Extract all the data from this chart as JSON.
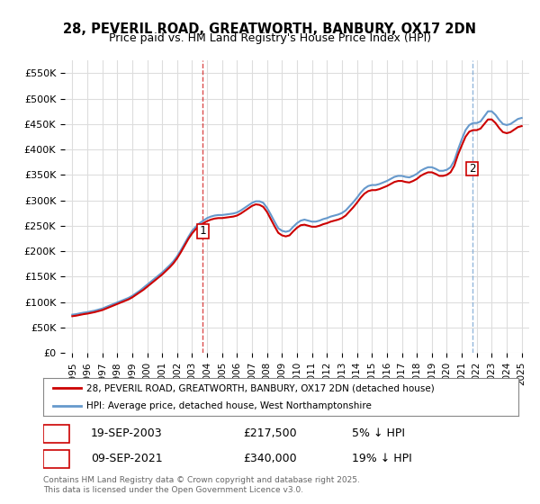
{
  "title_line1": "28, PEVERIL ROAD, GREATWORTH, BANBURY, OX17 2DN",
  "title_line2": "Price paid vs. HM Land Registry's House Price Index (HPI)",
  "legend_line1": "28, PEVERIL ROAD, GREATWORTH, BANBURY, OX17 2DN (detached house)",
  "legend_line2": "HPI: Average price, detached house, West Northamptonshire",
  "footer": "Contains HM Land Registry data © Crown copyright and database right 2025.\nThis data is licensed under the Open Government Licence v3.0.",
  "transaction1_label": "1",
  "transaction1_date": "19-SEP-2003",
  "transaction1_price": "£217,500",
  "transaction1_hpi": "5% ↓ HPI",
  "transaction2_label": "2",
  "transaction2_date": "09-SEP-2021",
  "transaction2_price": "£340,000",
  "transaction2_hpi": "19% ↓ HPI",
  "sale_color": "#cc0000",
  "hpi_color": "#6699cc",
  "background_color": "#ffffff",
  "grid_color": "#dddddd",
  "sale1_x": 2003.72,
  "sale1_y": 217500,
  "sale2_x": 2021.69,
  "sale2_y": 340000,
  "ylim_min": 0,
  "ylim_max": 575000,
  "xlim_min": 1994.5,
  "xlim_max": 2025.5,
  "hpi_years": [
    1995,
    1995.25,
    1995.5,
    1995.75,
    1996,
    1996.25,
    1996.5,
    1996.75,
    1997,
    1997.25,
    1997.5,
    1997.75,
    1998,
    1998.25,
    1998.5,
    1998.75,
    1999,
    1999.25,
    1999.5,
    1999.75,
    2000,
    2000.25,
    2000.5,
    2000.75,
    2001,
    2001.25,
    2001.5,
    2001.75,
    2002,
    2002.25,
    2002.5,
    2002.75,
    2003,
    2003.25,
    2003.5,
    2003.75,
    2004,
    2004.25,
    2004.5,
    2004.75,
    2005,
    2005.25,
    2005.5,
    2005.75,
    2006,
    2006.25,
    2006.5,
    2006.75,
    2007,
    2007.25,
    2007.5,
    2007.75,
    2008,
    2008.25,
    2008.5,
    2008.75,
    2009,
    2009.25,
    2009.5,
    2009.75,
    2010,
    2010.25,
    2010.5,
    2010.75,
    2011,
    2011.25,
    2011.5,
    2011.75,
    2012,
    2012.25,
    2012.5,
    2012.75,
    2013,
    2013.25,
    2013.5,
    2013.75,
    2014,
    2014.25,
    2014.5,
    2014.75,
    2015,
    2015.25,
    2015.5,
    2015.75,
    2016,
    2016.25,
    2016.5,
    2016.75,
    2017,
    2017.25,
    2017.5,
    2017.75,
    2018,
    2018.25,
    2018.5,
    2018.75,
    2019,
    2019.25,
    2019.5,
    2019.75,
    2020,
    2020.25,
    2020.5,
    2020.75,
    2021,
    2021.25,
    2021.5,
    2021.75,
    2022,
    2022.25,
    2022.5,
    2022.75,
    2023,
    2023.25,
    2023.5,
    2023.75,
    2024,
    2024.25,
    2024.5,
    2024.75,
    2025
  ],
  "hpi_values": [
    75000,
    76000,
    77500,
    79000,
    80000,
    81500,
    83000,
    85000,
    87000,
    90000,
    93000,
    96000,
    99000,
    102000,
    105000,
    108000,
    112000,
    117000,
    122000,
    128000,
    134000,
    140000,
    146000,
    152000,
    158000,
    165000,
    172000,
    180000,
    190000,
    202000,
    215000,
    228000,
    240000,
    248000,
    255000,
    260000,
    265000,
    268000,
    270000,
    271000,
    271000,
    272000,
    273000,
    274000,
    276000,
    280000,
    285000,
    290000,
    295000,
    298000,
    298000,
    295000,
    285000,
    272000,
    258000,
    245000,
    240000,
    238000,
    240000,
    248000,
    255000,
    260000,
    262000,
    260000,
    258000,
    258000,
    260000,
    263000,
    265000,
    268000,
    270000,
    272000,
    275000,
    280000,
    288000,
    296000,
    305000,
    315000,
    323000,
    328000,
    330000,
    330000,
    332000,
    335000,
    338000,
    342000,
    346000,
    348000,
    348000,
    346000,
    345000,
    348000,
    352000,
    358000,
    362000,
    365000,
    365000,
    362000,
    358000,
    358000,
    360000,
    365000,
    378000,
    400000,
    420000,
    438000,
    448000,
    452000,
    452000,
    455000,
    465000,
    475000,
    475000,
    468000,
    458000,
    450000,
    448000,
    450000,
    455000,
    460000,
    462000
  ],
  "sale_years": [
    1995,
    1995.25,
    1995.5,
    1995.75,
    1996,
    1996.25,
    1996.5,
    1996.75,
    1997,
    1997.25,
    1997.5,
    1997.75,
    1998,
    1998.25,
    1998.5,
    1998.75,
    1999,
    1999.25,
    1999.5,
    1999.75,
    2000,
    2000.25,
    2000.5,
    2000.75,
    2001,
    2001.25,
    2001.5,
    2001.75,
    2002,
    2002.25,
    2002.5,
    2002.75,
    2003,
    2003.25,
    2003.5,
    2003.75,
    2004,
    2004.25,
    2004.5,
    2004.75,
    2005,
    2005.25,
    2005.5,
    2005.75,
    2006,
    2006.25,
    2006.5,
    2006.75,
    2007,
    2007.25,
    2007.5,
    2007.75,
    2008,
    2008.25,
    2008.5,
    2008.75,
    2009,
    2009.25,
    2009.5,
    2009.75,
    2010,
    2010.25,
    2010.5,
    2010.75,
    2011,
    2011.25,
    2011.5,
    2011.75,
    2012,
    2012.25,
    2012.5,
    2012.75,
    2013,
    2013.25,
    2013.5,
    2013.75,
    2014,
    2014.25,
    2014.5,
    2014.75,
    2015,
    2015.25,
    2015.5,
    2015.75,
    2016,
    2016.25,
    2016.5,
    2016.75,
    2017,
    2017.25,
    2017.5,
    2017.75,
    2018,
    2018.25,
    2018.5,
    2018.75,
    2019,
    2019.25,
    2019.5,
    2019.75,
    2020,
    2020.25,
    2020.5,
    2020.75,
    2021,
    2021.25,
    2021.5,
    2021.75,
    2022,
    2022.25,
    2022.5,
    2022.75,
    2023,
    2023.25,
    2023.5,
    2023.75,
    2024,
    2024.25,
    2024.5,
    2024.75,
    2025
  ],
  "sale_values": [
    72000,
    73000,
    74500,
    76000,
    77000,
    78500,
    80000,
    82000,
    84000,
    87000,
    90000,
    93000,
    96000,
    99000,
    102000,
    105000,
    109000,
    114000,
    119000,
    124000,
    130000,
    136000,
    142000,
    148000,
    154000,
    161000,
    168000,
    176000,
    186000,
    198000,
    211000,
    224000,
    235000,
    243500,
    250000,
    255000,
    259000,
    262000,
    264000,
    265000,
    265000,
    266000,
    267000,
    268000,
    270000,
    274000,
    279000,
    284000,
    289000,
    292000,
    291000,
    287000,
    277000,
    263000,
    249000,
    236000,
    231000,
    229000,
    231000,
    239000,
    246000,
    251000,
    252000,
    250000,
    248000,
    248000,
    250000,
    253000,
    255000,
    258000,
    260000,
    262000,
    265000,
    270000,
    278000,
    286000,
    295000,
    305000,
    313000,
    318000,
    320000,
    320000,
    322000,
    325000,
    328000,
    332000,
    336000,
    338000,
    338000,
    336000,
    335000,
    338000,
    342000,
    348000,
    352000,
    355000,
    355000,
    352000,
    348000,
    348000,
    350000,
    355000,
    368000,
    390000,
    408000,
    425000,
    435000,
    438000,
    438000,
    441000,
    450000,
    459000,
    459000,
    452000,
    442000,
    434000,
    432000,
    434000,
    439000,
    444000,
    446000
  ],
  "xticks": [
    1995,
    1996,
    1997,
    1998,
    1999,
    2000,
    2001,
    2002,
    2003,
    2004,
    2005,
    2006,
    2007,
    2008,
    2009,
    2010,
    2011,
    2012,
    2013,
    2014,
    2015,
    2016,
    2017,
    2018,
    2019,
    2020,
    2021,
    2022,
    2023,
    2024,
    2025
  ]
}
